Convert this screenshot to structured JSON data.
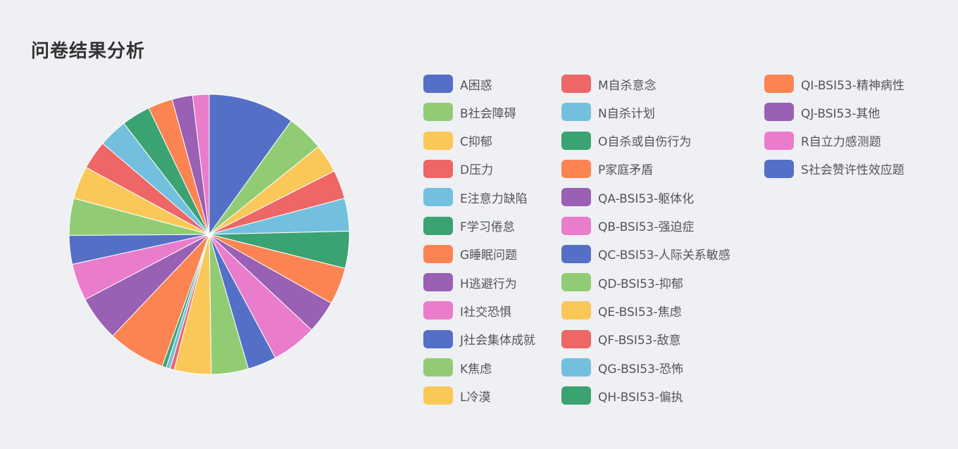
{
  "title": "问卷结果分析",
  "colors": {
    "background": "#eef0f4",
    "palette": [
      "#5470c6",
      "#91cc75",
      "#fac858",
      "#ee6666",
      "#73c0de",
      "#3ba272",
      "#fc8452",
      "#9a60b4",
      "#ea7ccc"
    ]
  },
  "chart_data": {
    "type": "pie",
    "title": "问卷结果分析",
    "legend_position": "right",
    "series": [
      {
        "name": "A困惑",
        "value": 10.5
      },
      {
        "name": "B社会障碍",
        "value": 4.5
      },
      {
        "name": "C抑郁",
        "value": 3.5
      },
      {
        "name": "D压力",
        "value": 3.5
      },
      {
        "name": "E注意力缺陷",
        "value": 4.0
      },
      {
        "name": "F学习倦怠",
        "value": 4.5
      },
      {
        "name": "G睡眠问题",
        "value": 4.5
      },
      {
        "name": "H逃避行为",
        "value": 4.0
      },
      {
        "name": "I社交恐惧",
        "value": 5.5
      },
      {
        "name": "J社会集体成就",
        "value": 3.5
      },
      {
        "name": "K焦虑",
        "value": 4.5
      },
      {
        "name": "L冷漠",
        "value": 4.5
      },
      {
        "name": "M自杀意念",
        "value": 0.5
      },
      {
        "name": "N自杀计划",
        "value": 0.5
      },
      {
        "name": "O自杀或自伤行为",
        "value": 0.5
      },
      {
        "name": "P家庭矛盾",
        "value": 7.0
      },
      {
        "name": "QA-BSI53-躯体化",
        "value": 5.5
      },
      {
        "name": "QB-BSI53-强迫症",
        "value": 4.5
      },
      {
        "name": "QC-BSI53-人际关系敏感",
        "value": 3.5
      },
      {
        "name": "QD-BSI53-抑郁",
        "value": 4.5
      },
      {
        "name": "QE-BSI53-焦虑",
        "value": 4.0
      },
      {
        "name": "QF-BSI53-敌意",
        "value": 3.5
      },
      {
        "name": "QG-BSI53-恐怖",
        "value": 3.5
      },
      {
        "name": "QH-BSI53-偏执",
        "value": 3.5
      },
      {
        "name": "QI-BSI53-精神病性",
        "value": 3.0
      },
      {
        "name": "QJ-BSI53-其他",
        "value": 2.5
      },
      {
        "name": "R自立力感测题",
        "value": 2.0
      },
      {
        "name": "S社会赞许性效应题",
        "value": 0.0
      }
    ]
  }
}
